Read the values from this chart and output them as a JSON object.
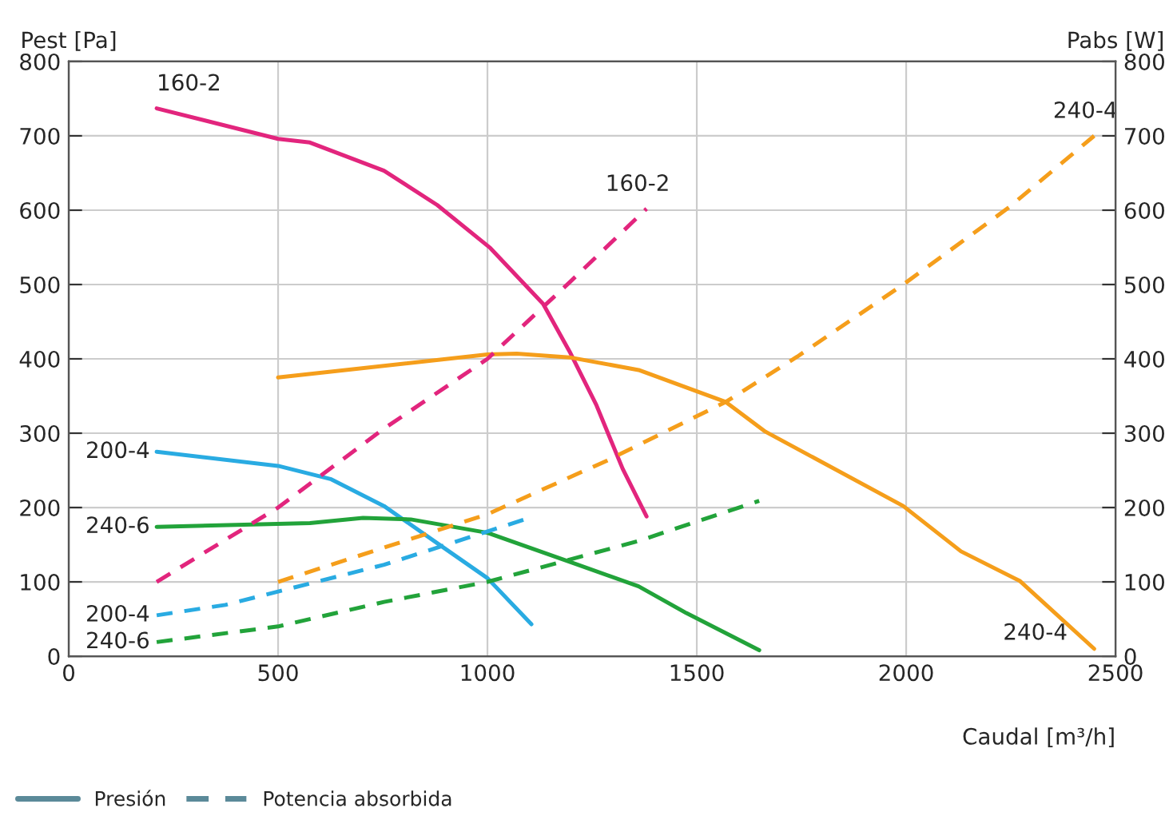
{
  "chart_data": {
    "type": "line",
    "ylabel": "Pest [Pa]",
    "y2label": "Pabs [W]",
    "xlabel": "Caudal [m³/h]",
    "xlim": [
      0,
      2500
    ],
    "xticks": [
      0,
      500,
      1000,
      1500,
      2000,
      2500
    ],
    "ylim": [
      0,
      800
    ],
    "yticks": [
      0,
      100,
      200,
      300,
      400,
      500,
      600,
      700,
      800
    ],
    "y2lim": [
      0,
      800
    ],
    "y2ticks": [
      0,
      100,
      200,
      300,
      400,
      500,
      600,
      700,
      800
    ],
    "grid": true,
    "legend": "bottom left",
    "marker": "none",
    "series": [
      {
        "color": "#e2257d",
        "line_style": "solid",
        "axis": "y",
        "x": [
          210,
          500,
          576,
          753,
          880,
          1007,
          1133,
          1196,
          1260,
          1323,
          1380
        ],
        "values": [
          737,
          696,
          691,
          653,
          607,
          549,
          474,
          410,
          338,
          252,
          188
        ]
      },
      {
        "color": "#e2257d",
        "line_style": "dashed",
        "axis": "y2",
        "x": [
          210,
          500,
          750,
          1000,
          1200,
          1380
        ],
        "values": [
          100,
          200,
          305,
          400,
          505,
          602
        ]
      },
      {
        "color": "#f59e1b",
        "line_style": "solid",
        "axis": "y",
        "x": [
          500,
          1000,
          1070,
          1196,
          1361,
          1569,
          1664,
          1993,
          2131,
          2272,
          2449
        ],
        "values": [
          375,
          406,
          407,
          402,
          385,
          342,
          302,
          202,
          141,
          101,
          10
        ]
      },
      {
        "color": "#f59e1b",
        "line_style": "dashed",
        "axis": "y2",
        "x": [
          500,
          1000,
          1285,
          1569,
          1740,
          1993,
          2246,
          2449
        ],
        "values": [
          100,
          191,
          263,
          342,
          403,
          500,
          604,
          700
        ]
      },
      {
        "color": "#29abe2",
        "line_style": "solid",
        "axis": "y",
        "x": [
          210,
          500,
          627,
          753,
          880,
          1000,
          1105
        ],
        "values": [
          275,
          256,
          238,
          202,
          152,
          105,
          43
        ]
      },
      {
        "color": "#29abe2",
        "line_style": "dashed",
        "axis": "y2",
        "x": [
          210,
          374,
          500,
          753,
          1089
        ],
        "values": [
          55,
          69,
          87,
          123,
          184
        ]
      },
      {
        "color": "#22a33a",
        "line_style": "solid",
        "axis": "y",
        "x": [
          210,
          576,
          703,
          817,
          1000,
          1196,
          1361,
          1475,
          1649
        ],
        "values": [
          174,
          179,
          186,
          184,
          166,
          127,
          94,
          58,
          8
        ]
      },
      {
        "color": "#22a33a",
        "line_style": "dashed",
        "axis": "y2",
        "x": [
          210,
          500,
          753,
          1000,
          1361,
          1649
        ],
        "values": [
          19,
          40,
          73,
          100,
          155,
          209
        ]
      },
      {
        "name": "Presión",
        "color": "#5b8a99",
        "line_style": "solid"
      },
      {
        "name": "Potencia absorbida",
        "color": "#5b8a99",
        "line_style": "dashed"
      }
    ],
    "annotations": [
      {
        "text": "160-2",
        "x": 210,
        "y": 737
      },
      {
        "text": "160-2",
        "x": 1380,
        "y": 602
      },
      {
        "text": "240-4",
        "x": 2449,
        "y": 700
      },
      {
        "text": "240-4",
        "x": 2449,
        "y": 10
      },
      {
        "text": "200-4",
        "x": 210,
        "y": 275
      },
      {
        "text": "200-4",
        "x": 210,
        "y": 55
      },
      {
        "text": "240-6",
        "x": 210,
        "y": 174
      },
      {
        "text": "240-6",
        "x": 210,
        "y": 19
      }
    ]
  }
}
